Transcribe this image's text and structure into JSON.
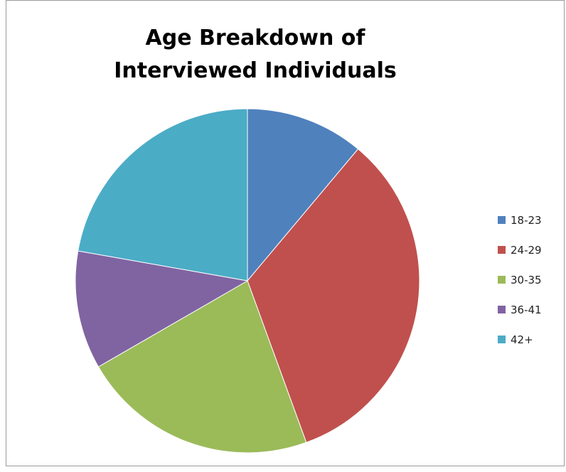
{
  "chart_data": {
    "type": "pie",
    "title": "Age Breakdown of Interviewed Individuals",
    "categories": [
      "18-23",
      "24-29",
      "30-35",
      "36-41",
      "42+"
    ],
    "values": [
      11.1,
      33.3,
      22.2,
      11.1,
      22.2
    ],
    "colors": [
      "#4f81bd",
      "#c0504d",
      "#9bbb59",
      "#8064a2",
      "#4bacc6"
    ],
    "legend_position": "right",
    "start_angle": "12 o'clock",
    "direction": "clockwise"
  }
}
